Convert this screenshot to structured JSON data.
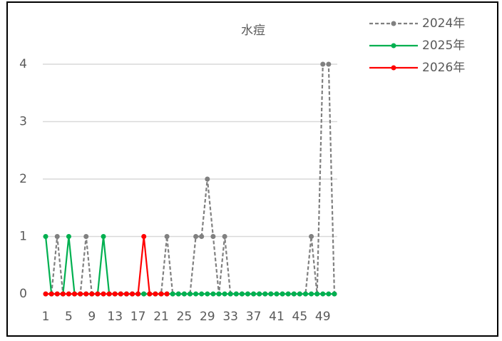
{
  "chart_data": {
    "type": "line",
    "title": "水痘",
    "categories": [
      1,
      null,
      null,
      null,
      5,
      null,
      null,
      null,
      9,
      null,
      null,
      null,
      13,
      null,
      null,
      null,
      17,
      null,
      null,
      null,
      21,
      null,
      null,
      null,
      25,
      null,
      null,
      null,
      29,
      null,
      null,
      null,
      33,
      null,
      null,
      null,
      37,
      null,
      null,
      null,
      41,
      null,
      null,
      null,
      45,
      null,
      null,
      null,
      49,
      null,
      null
    ],
    "series": [
      {
        "name": "2024年",
        "color": "#808080",
        "line_style": "dashed",
        "values": [
          0,
          0,
          1,
          0,
          0,
          0,
          0,
          1,
          0,
          0,
          0,
          0,
          0,
          0,
          0,
          0,
          0,
          0,
          0,
          0,
          0,
          1,
          0,
          0,
          0,
          0,
          1,
          1,
          2,
          1,
          0,
          1,
          0,
          0,
          0,
          0,
          0,
          0,
          0,
          0,
          0,
          0,
          0,
          0,
          0,
          0,
          1,
          0,
          4,
          4,
          0
        ]
      },
      {
        "name": "2025年",
        "color": "#00b050",
        "line_style": "solid",
        "values": [
          1,
          0,
          0,
          0,
          1,
          0,
          0,
          0,
          0,
          0,
          1,
          0,
          0,
          0,
          0,
          0,
          0,
          0,
          0,
          0,
          0,
          0,
          0,
          0,
          0,
          0,
          0,
          0,
          0,
          0,
          0,
          0,
          0,
          0,
          0,
          0,
          0,
          0,
          0,
          0,
          0,
          0,
          0,
          0,
          0,
          0,
          0,
          0,
          0,
          0,
          0
        ]
      },
      {
        "name": "2026年",
        "color": "#ff0000",
        "line_style": "solid",
        "values": [
          0,
          0,
          0,
          0,
          0,
          0,
          0,
          0,
          0,
          0,
          0,
          0,
          0,
          0,
          0,
          0,
          0,
          1,
          0,
          0,
          0,
          0,
          null,
          null,
          null,
          null,
          null,
          null,
          null,
          null,
          null,
          null,
          null,
          null,
          null,
          null,
          null,
          null,
          null,
          null,
          null,
          null,
          null,
          null,
          null,
          null,
          null,
          null,
          null,
          null,
          null
        ]
      }
    ],
    "ylim": [
      0,
      4
    ],
    "yticks": [
      0,
      1,
      2,
      3,
      4
    ],
    "grid": true,
    "legend": "top-right"
  }
}
